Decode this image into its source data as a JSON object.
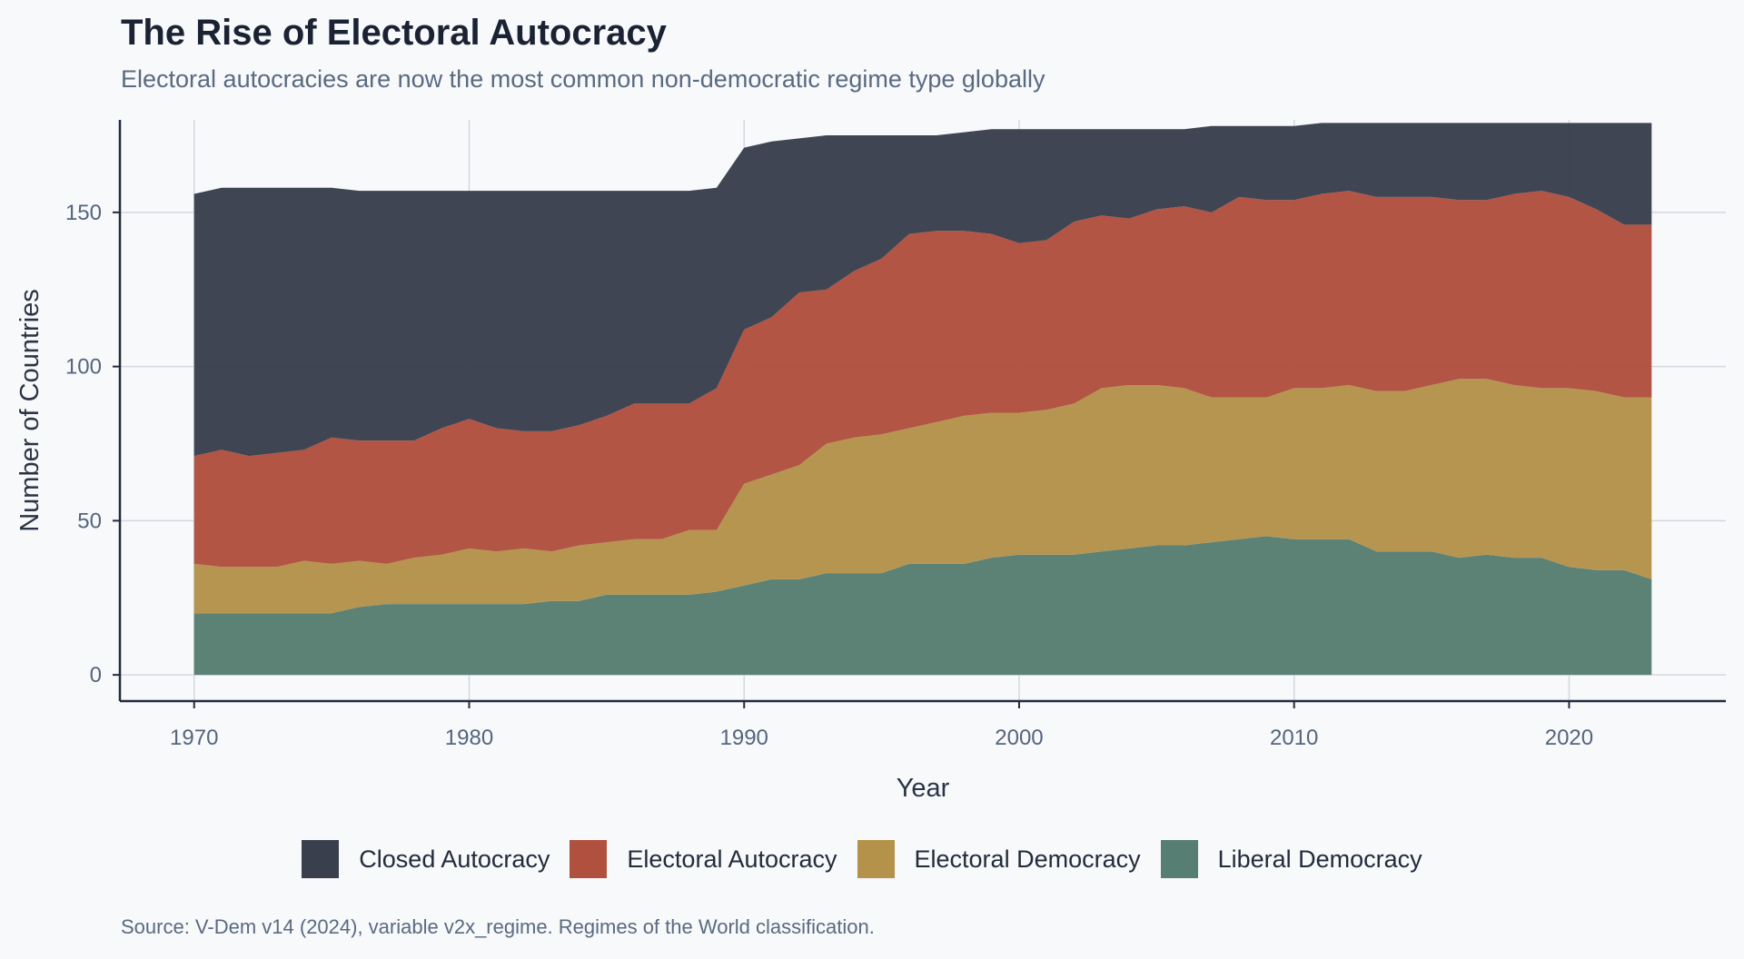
{
  "header": {
    "title": "The Rise of Electoral Autocracy",
    "subtitle": "Electoral autocracies are now the most common non-democratic regime type globally"
  },
  "source": "Source: V-Dem v14 (2024), variable v2x_regime. Regimes of the World classification.",
  "chart_data": {
    "type": "area",
    "stacked": true,
    "title": "The Rise of Electoral Autocracy",
    "subtitle": "Electoral autocracies are now the most common non-democratic regime type globally",
    "xlabel": "Year",
    "ylabel": "Number of Countries",
    "xlim": [
      1967.3,
      2025.7
    ],
    "ylim": [
      -8.5,
      180
    ],
    "xticks": [
      1970,
      1980,
      1990,
      2000,
      2010,
      2020
    ],
    "yticks": [
      0,
      50,
      100,
      150
    ],
    "grid": true,
    "legend_position": "bottom",
    "x": [
      1970,
      1971,
      1972,
      1973,
      1974,
      1975,
      1976,
      1977,
      1978,
      1979,
      1980,
      1981,
      1982,
      1983,
      1984,
      1985,
      1986,
      1987,
      1988,
      1989,
      1990,
      1991,
      1992,
      1993,
      1994,
      1995,
      1996,
      1997,
      1998,
      1999,
      2000,
      2001,
      2002,
      2003,
      2004,
      2005,
      2006,
      2007,
      2008,
      2009,
      2010,
      2011,
      2012,
      2013,
      2014,
      2015,
      2016,
      2017,
      2018,
      2019,
      2020,
      2021,
      2022,
      2023
    ],
    "series": [
      {
        "name": "Liberal Democracy",
        "color": "#577e72",
        "values": [
          20,
          20,
          20,
          20,
          20,
          20,
          22,
          23,
          23,
          23,
          23,
          23,
          23,
          24,
          24,
          26,
          26,
          26,
          26,
          27,
          29,
          31,
          31,
          33,
          33,
          33,
          36,
          36,
          36,
          38,
          39,
          39,
          39,
          40,
          41,
          42,
          42,
          43,
          44,
          45,
          44,
          44,
          44,
          40,
          40,
          40,
          38,
          39,
          38,
          38,
          35,
          34,
          34,
          31
        ]
      },
      {
        "name": "Electoral Democracy",
        "color": "#b4924a",
        "values": [
          16,
          15,
          15,
          15,
          17,
          16,
          15,
          13,
          15,
          16,
          18,
          17,
          18,
          16,
          18,
          17,
          18,
          18,
          21,
          20,
          33,
          34,
          37,
          42,
          44,
          45,
          44,
          46,
          48,
          47,
          46,
          47,
          49,
          53,
          53,
          52,
          51,
          47,
          46,
          45,
          49,
          49,
          50,
          52,
          52,
          54,
          58,
          57,
          56,
          55,
          58,
          58,
          56,
          59
        ]
      },
      {
        "name": "Electoral Autocracy",
        "color": "#b0503f",
        "values": [
          35,
          38,
          36,
          37,
          36,
          41,
          39,
          40,
          38,
          41,
          42,
          40,
          38,
          39,
          39,
          41,
          44,
          44,
          41,
          46,
          50,
          51,
          56,
          50,
          54,
          57,
          63,
          62,
          60,
          58,
          55,
          55,
          59,
          56,
          54,
          57,
          59,
          60,
          65,
          64,
          61,
          63,
          63,
          63,
          63,
          61,
          58,
          58,
          62,
          64,
          62,
          59,
          56,
          56
        ]
      },
      {
        "name": "Closed Autocracy",
        "color": "#393f4c",
        "values": [
          85,
          85,
          87,
          86,
          85,
          81,
          81,
          81,
          81,
          77,
          74,
          77,
          78,
          78,
          76,
          73,
          69,
          69,
          69,
          65,
          59,
          57,
          50,
          50,
          44,
          40,
          32,
          31,
          32,
          34,
          37,
          36,
          30,
          28,
          29,
          26,
          25,
          28,
          23,
          24,
          24,
          23,
          22,
          24,
          24,
          24,
          25,
          25,
          23,
          22,
          24,
          28,
          33,
          33
        ]
      }
    ]
  }
}
